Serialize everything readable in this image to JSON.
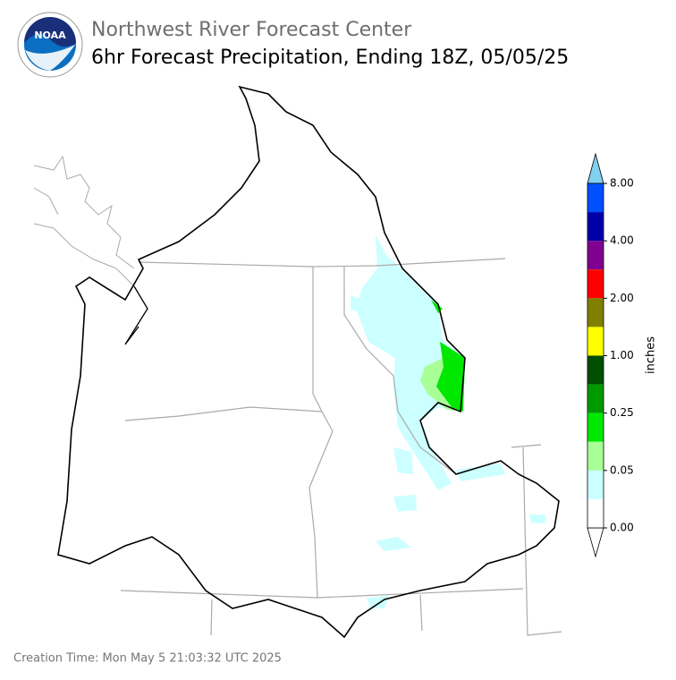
{
  "header": {
    "title": "Northwest River Forecast Center",
    "subtitle": "6hr Forecast Precipitation, Ending 18Z, 05/05/25",
    "logo_text": "NOAA"
  },
  "legend": {
    "label": "inches",
    "ticks": [
      "8.00",
      "4.00",
      "2.00",
      "1.00",
      "0.25",
      "0.05",
      "0.00"
    ],
    "colors": [
      "#0050ff",
      "#0000a8",
      "#800090",
      "#ff0000",
      "#808000",
      "#ffff00",
      "#005000",
      "#009a00",
      "#00e800",
      "#a8ff98",
      "#ccffff",
      "#ffffff"
    ],
    "over_color": "#80d0f0",
    "under_color": "#ffffff"
  },
  "footer": {
    "creation_time": "Creation Time: Mon May 5 21:03:32 UTC 2025"
  }
}
